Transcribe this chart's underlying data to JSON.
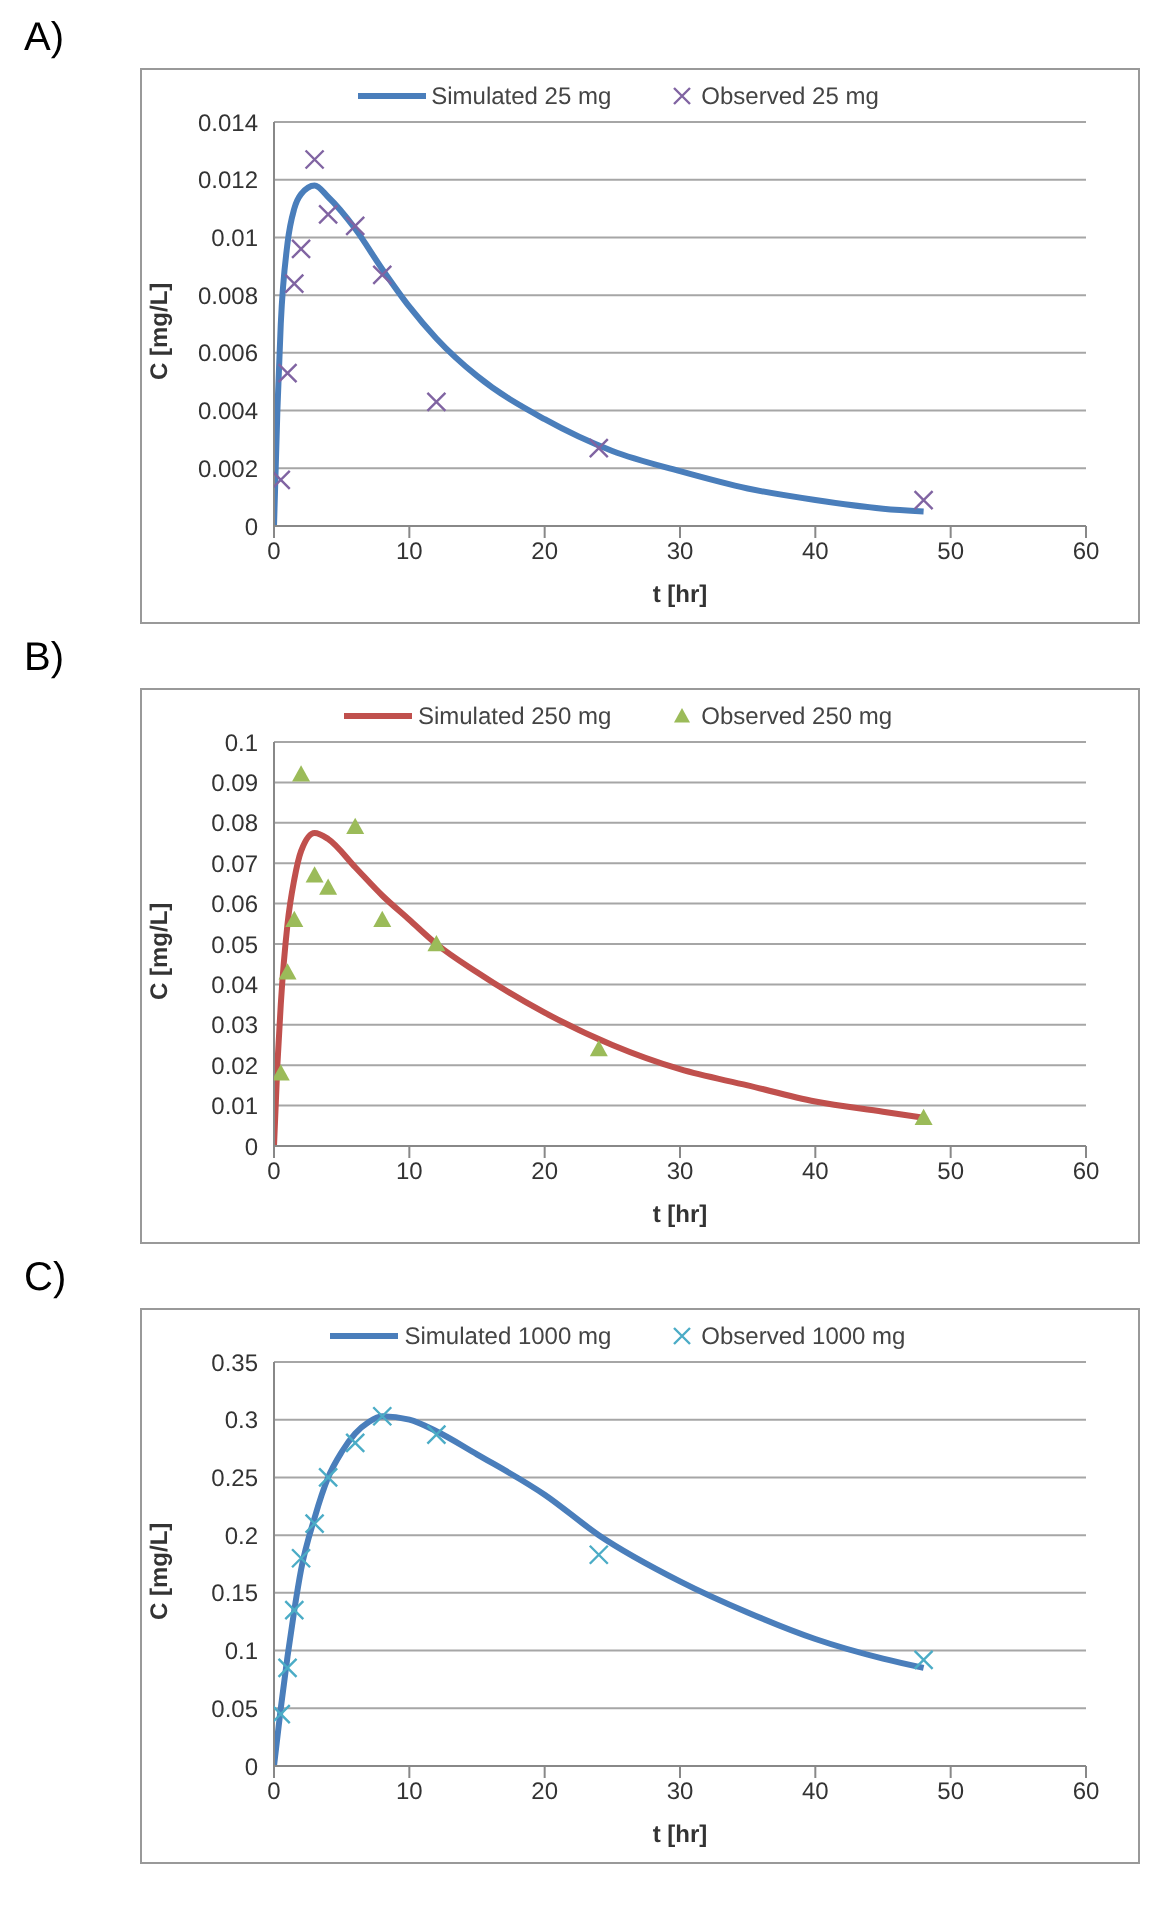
{
  "chart_data": [
    {
      "type": "line",
      "title": "A)",
      "xlabel": "t [hr]",
      "ylabel": "C [mg/L]",
      "xlim": [
        0,
        60
      ],
      "xticks": [
        0,
        10,
        20,
        30,
        40,
        50,
        60
      ],
      "ylim": [
        0,
        0.014
      ],
      "yticks": [
        0,
        0.002,
        0.004,
        0.006,
        0.008,
        0.01,
        0.012,
        0.014
      ],
      "grid": "y",
      "legend": "top",
      "series": [
        {
          "name": "Simulated 25 mg",
          "color": "#4a7ebb",
          "marker": "none",
          "x": [
            0,
            0.25,
            0.5,
            1,
            1.5,
            2,
            3,
            4,
            6,
            8,
            10,
            12,
            15,
            20,
            25,
            30,
            35,
            40,
            45,
            48
          ],
          "values": [
            0,
            0.004,
            0.007,
            0.0098,
            0.011,
            0.0115,
            0.0118,
            0.0114,
            0.0103,
            0.0089,
            0.0076,
            0.0065,
            0.0052,
            0.0037,
            0.0026,
            0.0019,
            0.0013,
            0.0009,
            0.0006,
            0.0005
          ]
        },
        {
          "name": "Observed 25 mg",
          "type": "scatter",
          "color": "#8064a2",
          "marker": "cross",
          "x": [
            0.5,
            1,
            1.5,
            2,
            3,
            4,
            6,
            8,
            12,
            24,
            48
          ],
          "values": [
            0.0016,
            0.0053,
            0.0084,
            0.0096,
            0.0127,
            0.0108,
            0.0104,
            0.0087,
            0.0043,
            0.0027,
            0.0009
          ]
        }
      ]
    },
    {
      "type": "line",
      "title": "B)",
      "xlabel": "t [hr]",
      "ylabel": "C [mg/L]",
      "xlim": [
        0,
        60
      ],
      "xticks": [
        0,
        10,
        20,
        30,
        40,
        50,
        60
      ],
      "ylim": [
        0,
        0.1
      ],
      "yticks": [
        0,
        0.01,
        0.02,
        0.03,
        0.04,
        0.05,
        0.06,
        0.07,
        0.08,
        0.09,
        0.1
      ],
      "grid": "y",
      "legend": "top",
      "series": [
        {
          "name": "Simulated 250 mg",
          "color": "#c0504d",
          "marker": "none",
          "x": [
            0,
            0.25,
            0.5,
            1,
            1.5,
            2,
            3,
            4,
            6,
            8,
            10,
            12,
            15,
            20,
            25,
            30,
            35,
            40,
            45,
            48
          ],
          "values": [
            0,
            0.02,
            0.035,
            0.055,
            0.066,
            0.073,
            0.0775,
            0.076,
            0.069,
            0.062,
            0.056,
            0.05,
            0.043,
            0.033,
            0.025,
            0.019,
            0.015,
            0.011,
            0.0085,
            0.007
          ]
        },
        {
          "name": "Observed 250 mg",
          "type": "scatter",
          "color": "#9bbb59",
          "marker": "triangle",
          "x": [
            0.5,
            1,
            1.5,
            2,
            3,
            4,
            6,
            8,
            12,
            24,
            48
          ],
          "values": [
            0.018,
            0.043,
            0.056,
            0.092,
            0.067,
            0.064,
            0.079,
            0.056,
            0.05,
            0.024,
            0.007
          ]
        }
      ]
    },
    {
      "type": "line",
      "title": "C)",
      "xlabel": "t [hr]",
      "ylabel": "C [mg/L]",
      "xlim": [
        0,
        60
      ],
      "xticks": [
        0,
        10,
        20,
        30,
        40,
        50,
        60
      ],
      "ylim": [
        0,
        0.35
      ],
      "yticks": [
        0,
        0.05,
        0.1,
        0.15,
        0.2,
        0.25,
        0.3,
        0.35
      ],
      "grid": "y",
      "legend": "top",
      "series": [
        {
          "name": "Simulated 1000 mg",
          "color": "#4a7ebb",
          "marker": "none",
          "x": [
            0,
            0.5,
            1,
            1.5,
            2,
            3,
            4,
            5,
            6,
            7,
            8,
            10,
            12,
            15,
            20,
            24,
            30,
            35,
            40,
            45,
            48
          ],
          "values": [
            0,
            0.05,
            0.095,
            0.135,
            0.17,
            0.215,
            0.25,
            0.272,
            0.288,
            0.298,
            0.303,
            0.3,
            0.29,
            0.27,
            0.235,
            0.2,
            0.16,
            0.133,
            0.11,
            0.093,
            0.085
          ]
        },
        {
          "name": "Observed 1000 mg",
          "type": "scatter",
          "color": "#4bacc6",
          "marker": "cross",
          "x": [
            0.5,
            1,
            1.5,
            2,
            3,
            4,
            6,
            8,
            12,
            24,
            48
          ],
          "values": [
            0.045,
            0.085,
            0.135,
            0.18,
            0.21,
            0.25,
            0.28,
            0.303,
            0.287,
            0.183,
            0.092
          ]
        }
      ]
    }
  ]
}
